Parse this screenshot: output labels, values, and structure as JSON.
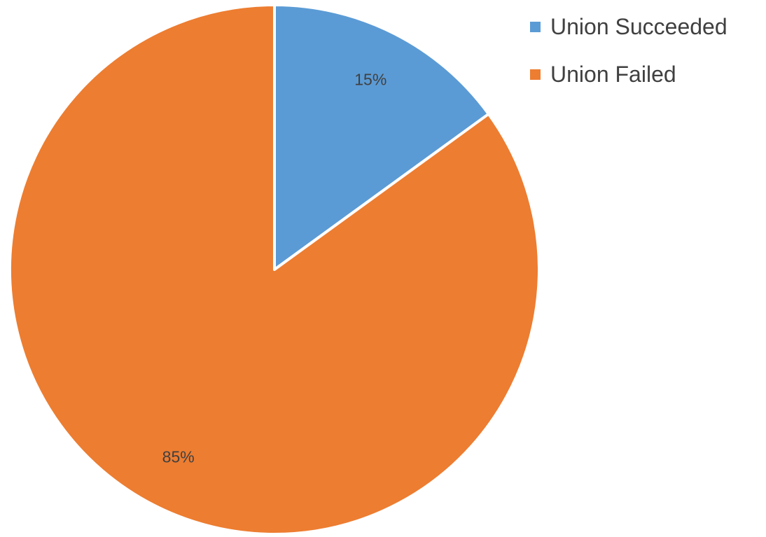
{
  "chart_data": {
    "type": "pie",
    "categories": [
      "Union Succeeded",
      "Union Failed"
    ],
    "values": [
      15,
      85
    ],
    "data_labels": [
      "15%",
      "85%"
    ],
    "colors": [
      "#5B9BD5",
      "#ED7D31"
    ],
    "legend_position": "top-right",
    "start_angle": "12 o'clock, clockwise"
  }
}
